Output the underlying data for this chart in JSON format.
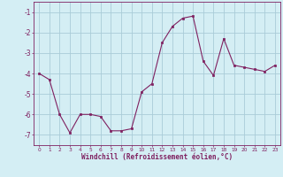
{
  "x": [
    0,
    1,
    2,
    3,
    4,
    5,
    6,
    7,
    8,
    9,
    10,
    11,
    12,
    13,
    14,
    15,
    16,
    17,
    18,
    19,
    20,
    21,
    22,
    23
  ],
  "y": [
    -4.0,
    -4.3,
    -6.0,
    -6.9,
    -6.0,
    -6.0,
    -6.1,
    -6.8,
    -6.8,
    -6.7,
    -4.9,
    -4.5,
    -2.5,
    -1.7,
    -1.3,
    -1.2,
    -3.4,
    -4.1,
    -2.3,
    -3.6,
    -3.7,
    -3.8,
    -3.9,
    -3.6
  ],
  "line_color": "#7f2060",
  "marker_color": "#7f2060",
  "bg_color": "#d4eef4",
  "grid_color": "#aaccd8",
  "xlabel": "Windchill (Refroidissement éolien,°C)",
  "xlabel_color": "#7f2060",
  "tick_color": "#7f2060",
  "ylim": [
    -7.5,
    -0.5
  ],
  "xlim": [
    -0.5,
    23.5
  ],
  "yticks": [
    -7,
    -6,
    -5,
    -4,
    -3,
    -2,
    -1
  ],
  "xticks": [
    0,
    1,
    2,
    3,
    4,
    5,
    6,
    7,
    8,
    9,
    10,
    11,
    12,
    13,
    14,
    15,
    16,
    17,
    18,
    19,
    20,
    21,
    22,
    23
  ],
  "figsize": [
    3.2,
    2.0
  ],
  "dpi": 100
}
